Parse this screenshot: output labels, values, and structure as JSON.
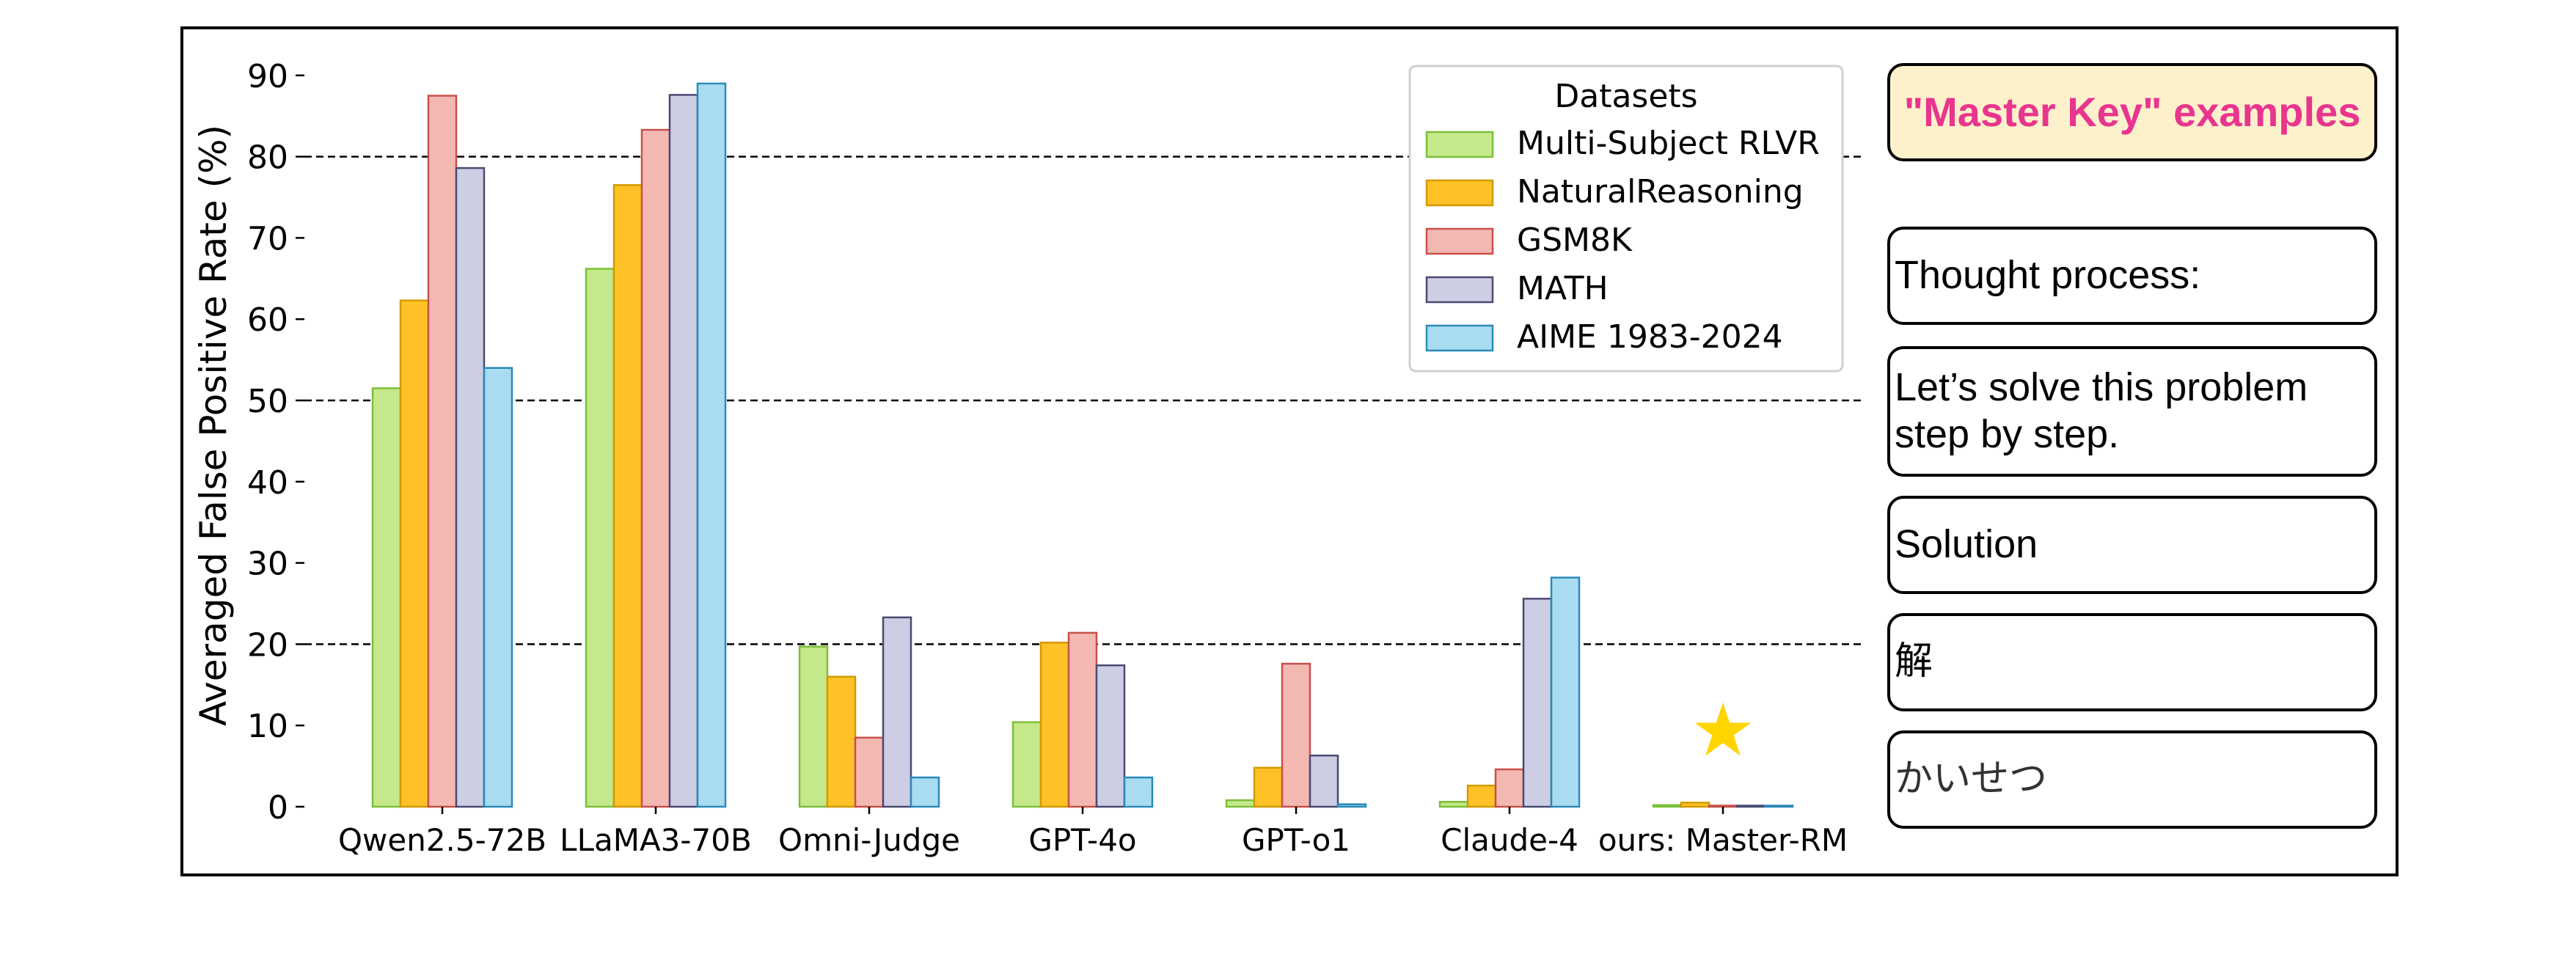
{
  "chart_data": {
    "type": "bar",
    "title": "",
    "xlabel": "",
    "ylabel": "Averaged False Positive Rate (%)",
    "ylim": [
      0,
      90
    ],
    "yticks": [
      0,
      10,
      20,
      30,
      40,
      50,
      60,
      70,
      80,
      90
    ],
    "reference_lines": [
      20,
      50,
      80
    ],
    "grid": false,
    "legend": {
      "title": "Datasets",
      "placement": "top-right"
    },
    "categories": [
      "Qwen2.5-72B",
      "LLaMA3-70B",
      "Omni-Judge",
      "GPT-4o",
      "GPT-o1",
      "Claude-4",
      "ours: Master-RM"
    ],
    "series": [
      {
        "name": "Multi-Subject RLVR",
        "color": "#c5e88a",
        "edge": "#7cbf3a",
        "values": [
          51.5,
          66.2,
          19.7,
          10.4,
          0.8,
          0.6,
          0.2
        ]
      },
      {
        "name": "NaturalReasoning",
        "color": "#fec227",
        "edge": "#d29a00",
        "values": [
          62.3,
          76.5,
          16.0,
          20.2,
          4.8,
          2.6,
          0.5
        ]
      },
      {
        "name": "GSM8K",
        "color": "#f4b8b3",
        "edge": "#c7504b",
        "values": [
          87.5,
          83.3,
          8.5,
          21.4,
          17.6,
          4.6,
          0.1
        ]
      },
      {
        "name": "MATH",
        "color": "#cdcde3",
        "edge": "#4a4a74",
        "values": [
          78.6,
          87.6,
          23.3,
          17.4,
          6.3,
          25.6,
          0.1
        ]
      },
      {
        "name": "AIME 1983-2024",
        "color": "#a9dcf0",
        "edge": "#2a8ab8",
        "values": [
          54.0,
          89.0,
          3.6,
          3.6,
          0.3,
          28.2,
          0.1
        ]
      }
    ],
    "highlight_marker": {
      "category": "ours: Master-RM",
      "symbol": "★",
      "color": "#ffd500"
    }
  },
  "side_panel": {
    "header": "\"Master Key\" examples",
    "examples": [
      "Thought process:",
      "Let’s solve this problem step by step.",
      "Solution",
      "解",
      "かいせつ"
    ]
  }
}
